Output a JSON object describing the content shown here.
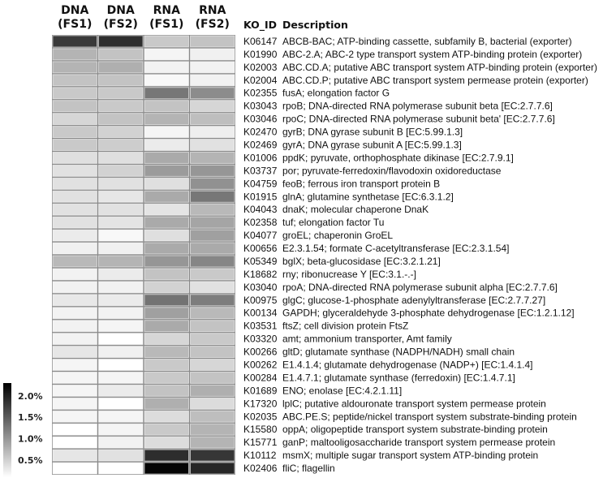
{
  "chart_data": {
    "type": "heatmap",
    "columns": [
      {
        "line1": "DNA",
        "line2": "(FS1)"
      },
      {
        "line1": "DNA",
        "line2": "(FS2)"
      },
      {
        "line1": "RNA",
        "line2": "(FS1)"
      },
      {
        "line1": "RNA",
        "line2": "(FS2)"
      }
    ],
    "row_header": {
      "id": "KO_ID",
      "description": "Description"
    },
    "rows": [
      {
        "id": "K06147",
        "description": "ABCB-BAC; ATP-binding cassette, subfamily B, bacterial (exporter)",
        "values": [
          1.8,
          1.9,
          0.57,
          0.62
        ]
      },
      {
        "id": "K01990",
        "description": "ABC-2.A; ABC-2 type transport system ATP-binding protein (exporter)",
        "values": [
          0.75,
          0.62,
          0.19,
          0.23
        ]
      },
      {
        "id": "K02003",
        "description": "ABC.CD.A; putative ABC transport system ATP-binding protein (exporter)",
        "values": [
          0.75,
          0.79,
          0.21,
          0.21
        ]
      },
      {
        "id": "K02004",
        "description": "ABC.CD.P; putative ABC transport system permease protein (exporter)",
        "values": [
          0.62,
          0.62,
          0.16,
          0.21
        ]
      },
      {
        "id": "K02355",
        "description": "fusA; elongation factor G",
        "values": [
          0.57,
          0.57,
          1.27,
          1.09
        ]
      },
      {
        "id": "K03043",
        "description": "rpoB; DNA-directed RNA polymerase subunit beta [EC:2.7.7.6]",
        "values": [
          0.62,
          0.57,
          0.62,
          0.45
        ]
      },
      {
        "id": "K03046",
        "description": "rpoC; DNA-directed RNA polymerase subunit beta' [EC:2.7.7.6]",
        "values": [
          0.45,
          0.62,
          0.75,
          0.66
        ]
      },
      {
        "id": "K02470",
        "description": "gyrB; DNA gyrase subunit B [EC:5.99.1.3]",
        "values": [
          0.57,
          0.49,
          0.19,
          0.25
        ]
      },
      {
        "id": "K02469",
        "description": "gyrA; DNA gyrase subunit A [EC:5.99.1.3]",
        "values": [
          0.57,
          0.53,
          0.27,
          0.36
        ]
      },
      {
        "id": "K01006",
        "description": "ppdK; pyruvate, orthophosphate dikinase [EC:2.7.9.1]",
        "values": [
          0.38,
          0.38,
          0.83,
          0.75
        ]
      },
      {
        "id": "K03737",
        "description": "por; pyruvate-ferredoxin/flavodoxin oxidoreductase",
        "values": [
          0.36,
          0.49,
          0.96,
          1.01
        ]
      },
      {
        "id": "K04759",
        "description": "feoB; ferrous iron transport protein B",
        "values": [
          0.36,
          0.36,
          0.38,
          1.05
        ]
      },
      {
        "id": "K01915",
        "description": "glnA; glutamine synthetase [EC:6.3.1.2]",
        "values": [
          0.36,
          0.32,
          0.83,
          1.27
        ]
      },
      {
        "id": "K04043",
        "description": "dnaK; molecular chaperone DnaK",
        "values": [
          0.36,
          0.36,
          0.33,
          0.7
        ]
      },
      {
        "id": "K02358",
        "description": "tuf; elongation factor Tu",
        "values": [
          0.36,
          0.33,
          0.83,
          0.88
        ]
      },
      {
        "id": "K04077",
        "description": "groEL; chaperonin GroEL",
        "values": [
          0.27,
          0.16,
          0.38,
          0.92
        ]
      },
      {
        "id": "K00656",
        "description": "E2.3.1.54; formate C-acetyltransferase [EC:2.3.1.54]",
        "values": [
          0.23,
          0.23,
          0.83,
          0.83
        ]
      },
      {
        "id": "K05349",
        "description": "bglX; beta-glucosidase [EC:3.2.1.21]",
        "values": [
          0.7,
          0.75,
          1.01,
          1.14
        ]
      },
      {
        "id": "K18682",
        "description": "rny; ribonucrease Y [EC:3.1.-.-]",
        "values": [
          0.21,
          0.27,
          0.62,
          0.57
        ]
      },
      {
        "id": "K03040",
        "description": "rpoA; DNA-directed RNA polymerase subunit alpha [EC:2.7.7.6]",
        "values": [
          0.21,
          0.21,
          0.49,
          0.36
        ]
      },
      {
        "id": "K00975",
        "description": "glgC; glucose-1-phosphate adenylyltransferase [EC:2.7.7.27]",
        "values": [
          0.3,
          0.27,
          1.31,
          1.22
        ]
      },
      {
        "id": "K00134",
        "description": "GAPDH; glyceraldehyde 3-phosphate dehydrogenase [EC:1.2.1.12]",
        "values": [
          0.2,
          0.2,
          0.92,
          0.7
        ]
      },
      {
        "id": "K03531",
        "description": "ftsZ; cell division protein FtsZ",
        "values": [
          0.21,
          0.19,
          0.83,
          0.62
        ]
      },
      {
        "id": "K03320",
        "description": "amt; ammonium transporter, Amt family",
        "values": [
          0.21,
          0.1,
          0.45,
          0.57
        ]
      },
      {
        "id": "K00266",
        "description": "gltD; glutamate synthase (NADPH/NADH) small chain",
        "values": [
          0.32,
          0.23,
          0.7,
          0.62
        ]
      },
      {
        "id": "K00262",
        "description": "E1.4.1.4; glutamate dehydrogenase (NADP+) [EC:1.4.1.4]",
        "values": [
          0.19,
          0.1,
          0.57,
          0.45
        ]
      },
      {
        "id": "K00284",
        "description": "E1.4.7.1; glutamate synthase (ferredoxin) [EC:1.4.7.1]",
        "values": [
          0.19,
          0.19,
          0.57,
          0.62
        ]
      },
      {
        "id": "K01689",
        "description": "ENO; enolase [EC:4.2.1.11]",
        "values": [
          0.19,
          0.27,
          0.62,
          0.79
        ]
      },
      {
        "id": "K17320",
        "description": "lplC; putative aldouronate transport system permease protein",
        "values": [
          0.19,
          0.1,
          0.79,
          0.4
        ]
      },
      {
        "id": "K02035",
        "description": "ABC.PE.S; peptide/nickel transport system substrate-binding protein",
        "values": [
          0.19,
          0.19,
          0.4,
          0.66
        ]
      },
      {
        "id": "K15580",
        "description": "oppA; oligopeptide transport system substrate-binding protein",
        "values": [
          0.1,
          0.19,
          0.57,
          0.75
        ]
      },
      {
        "id": "K15771",
        "description": "ganP; maltooligosaccharide transport system permease protein",
        "values": [
          0.1,
          0.21,
          0.4,
          0.75
        ]
      },
      {
        "id": "K10112",
        "description": "msmX; multiple sugar transport system ATP-binding protein",
        "values": [
          0.32,
          0.36,
          1.91,
          1.83
        ]
      },
      {
        "id": "K02406",
        "description": "fliC; flagellin",
        "values": [
          0.1,
          0.1,
          2.26,
          1.96
        ]
      }
    ],
    "colorbar": {
      "ticks": [
        "2.0%",
        "1.5%",
        "1.0%",
        "0.5%"
      ],
      "tick_values": [
        2.0,
        1.5,
        1.0,
        0.5
      ],
      "range": [
        0.1,
        2.3
      ],
      "low_color": "#ffffff",
      "high_color": "#000000"
    }
  }
}
